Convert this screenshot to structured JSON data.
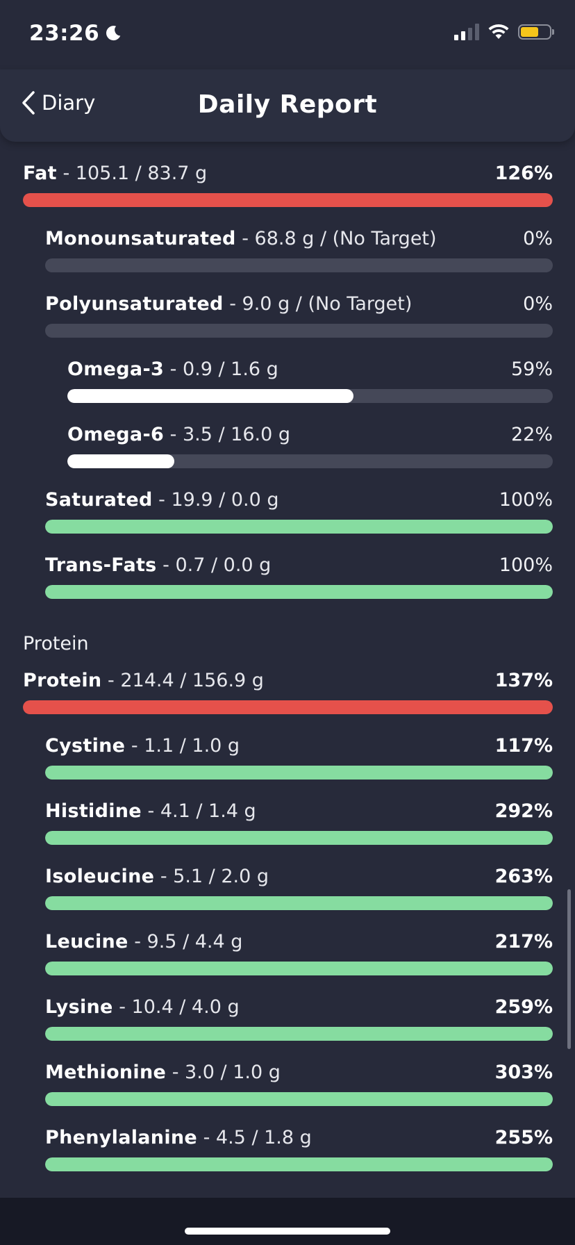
{
  "status_bar": {
    "time": "23:26",
    "battery_level": 0.62
  },
  "nav": {
    "back_label": "Diary",
    "title": "Daily Report"
  },
  "colors": {
    "over": "#e5514b",
    "met": "#86dca0",
    "partial": "#ffffff",
    "track": "#454858"
  },
  "section_protein": "Protein",
  "fat_rows": [
    {
      "name": "Fat",
      "detail": " - 105.1 / 83.7 g",
      "pct": "126%",
      "progress": 1.0,
      "status": "over",
      "level": 0,
      "bold": true
    },
    {
      "name": "Monounsaturated",
      "detail": " - 68.8 g / (No Target)",
      "pct": "0%",
      "progress": 0,
      "status": "none",
      "level": 1,
      "bold": false
    },
    {
      "name": "Polyunsaturated",
      "detail": " - 9.0 g / (No Target)",
      "pct": "0%",
      "progress": 0,
      "status": "none",
      "level": 1,
      "bold": false
    },
    {
      "name": "Omega-3",
      "detail": " - 0.9 / 1.6 g",
      "pct": "59%",
      "progress": 0.59,
      "status": "partial",
      "level": 2,
      "bold": false
    },
    {
      "name": "Omega-6",
      "detail": " - 3.5 / 16.0 g",
      "pct": "22%",
      "progress": 0.22,
      "status": "partial",
      "level": 2,
      "bold": false
    },
    {
      "name": "Saturated",
      "detail": " - 19.9 / 0.0 g",
      "pct": "100%",
      "progress": 1.0,
      "status": "met",
      "level": 1,
      "bold": false
    },
    {
      "name": "Trans-Fats",
      "detail": " - 0.7 / 0.0 g",
      "pct": "100%",
      "progress": 1.0,
      "status": "met",
      "level": 1,
      "bold": false
    }
  ],
  "protein_rows": [
    {
      "name": "Protein",
      "detail": " - 214.4 / 156.9 g",
      "pct": "137%",
      "progress": 1.0,
      "status": "over",
      "level": 0,
      "bold": true
    },
    {
      "name": "Cystine",
      "detail": " - 1.1 / 1.0 g",
      "pct": "117%",
      "progress": 1.0,
      "status": "met",
      "level": 1,
      "bold": true
    },
    {
      "name": "Histidine",
      "detail": " - 4.1 / 1.4 g",
      "pct": "292%",
      "progress": 1.0,
      "status": "met",
      "level": 1,
      "bold": true
    },
    {
      "name": "Isoleucine",
      "detail": " - 5.1 / 2.0 g",
      "pct": "263%",
      "progress": 1.0,
      "status": "met",
      "level": 1,
      "bold": true
    },
    {
      "name": "Leucine",
      "detail": " - 9.5 / 4.4 g",
      "pct": "217%",
      "progress": 1.0,
      "status": "met",
      "level": 1,
      "bold": true
    },
    {
      "name": "Lysine",
      "detail": " - 10.4 / 4.0 g",
      "pct": "259%",
      "progress": 1.0,
      "status": "met",
      "level": 1,
      "bold": true
    },
    {
      "name": "Methionine",
      "detail": " - 3.0 / 1.0 g",
      "pct": "303%",
      "progress": 1.0,
      "status": "met",
      "level": 1,
      "bold": true
    },
    {
      "name": "Phenylalanine",
      "detail": " - 4.5 / 1.8 g",
      "pct": "255%",
      "progress": 1.0,
      "status": "met",
      "level": 1,
      "bold": true
    }
  ]
}
